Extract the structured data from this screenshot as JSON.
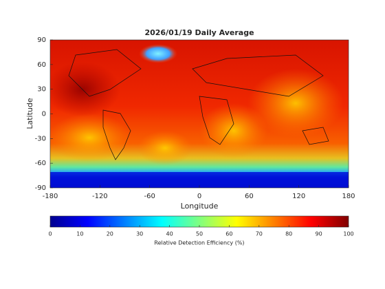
{
  "chart_data": {
    "type": "map",
    "title": "2026/01/19 Daily Average",
    "xlabel": "Longitude",
    "ylabel": "Latitude",
    "xlim": [
      -180,
      180
    ],
    "ylim": [
      -90,
      90
    ],
    "xticks": [
      -180,
      -120,
      -60,
      0,
      60,
      120,
      180
    ],
    "yticks": [
      -90,
      -60,
      -30,
      0,
      30,
      60,
      90
    ],
    "colormap": "jet",
    "colorbar": {
      "label": "Relative Detection Efficiency (%)",
      "lim": [
        0,
        100
      ],
      "ticks": [
        0,
        10,
        20,
        30,
        40,
        50,
        60,
        70,
        80,
        90,
        100
      ]
    }
  }
}
